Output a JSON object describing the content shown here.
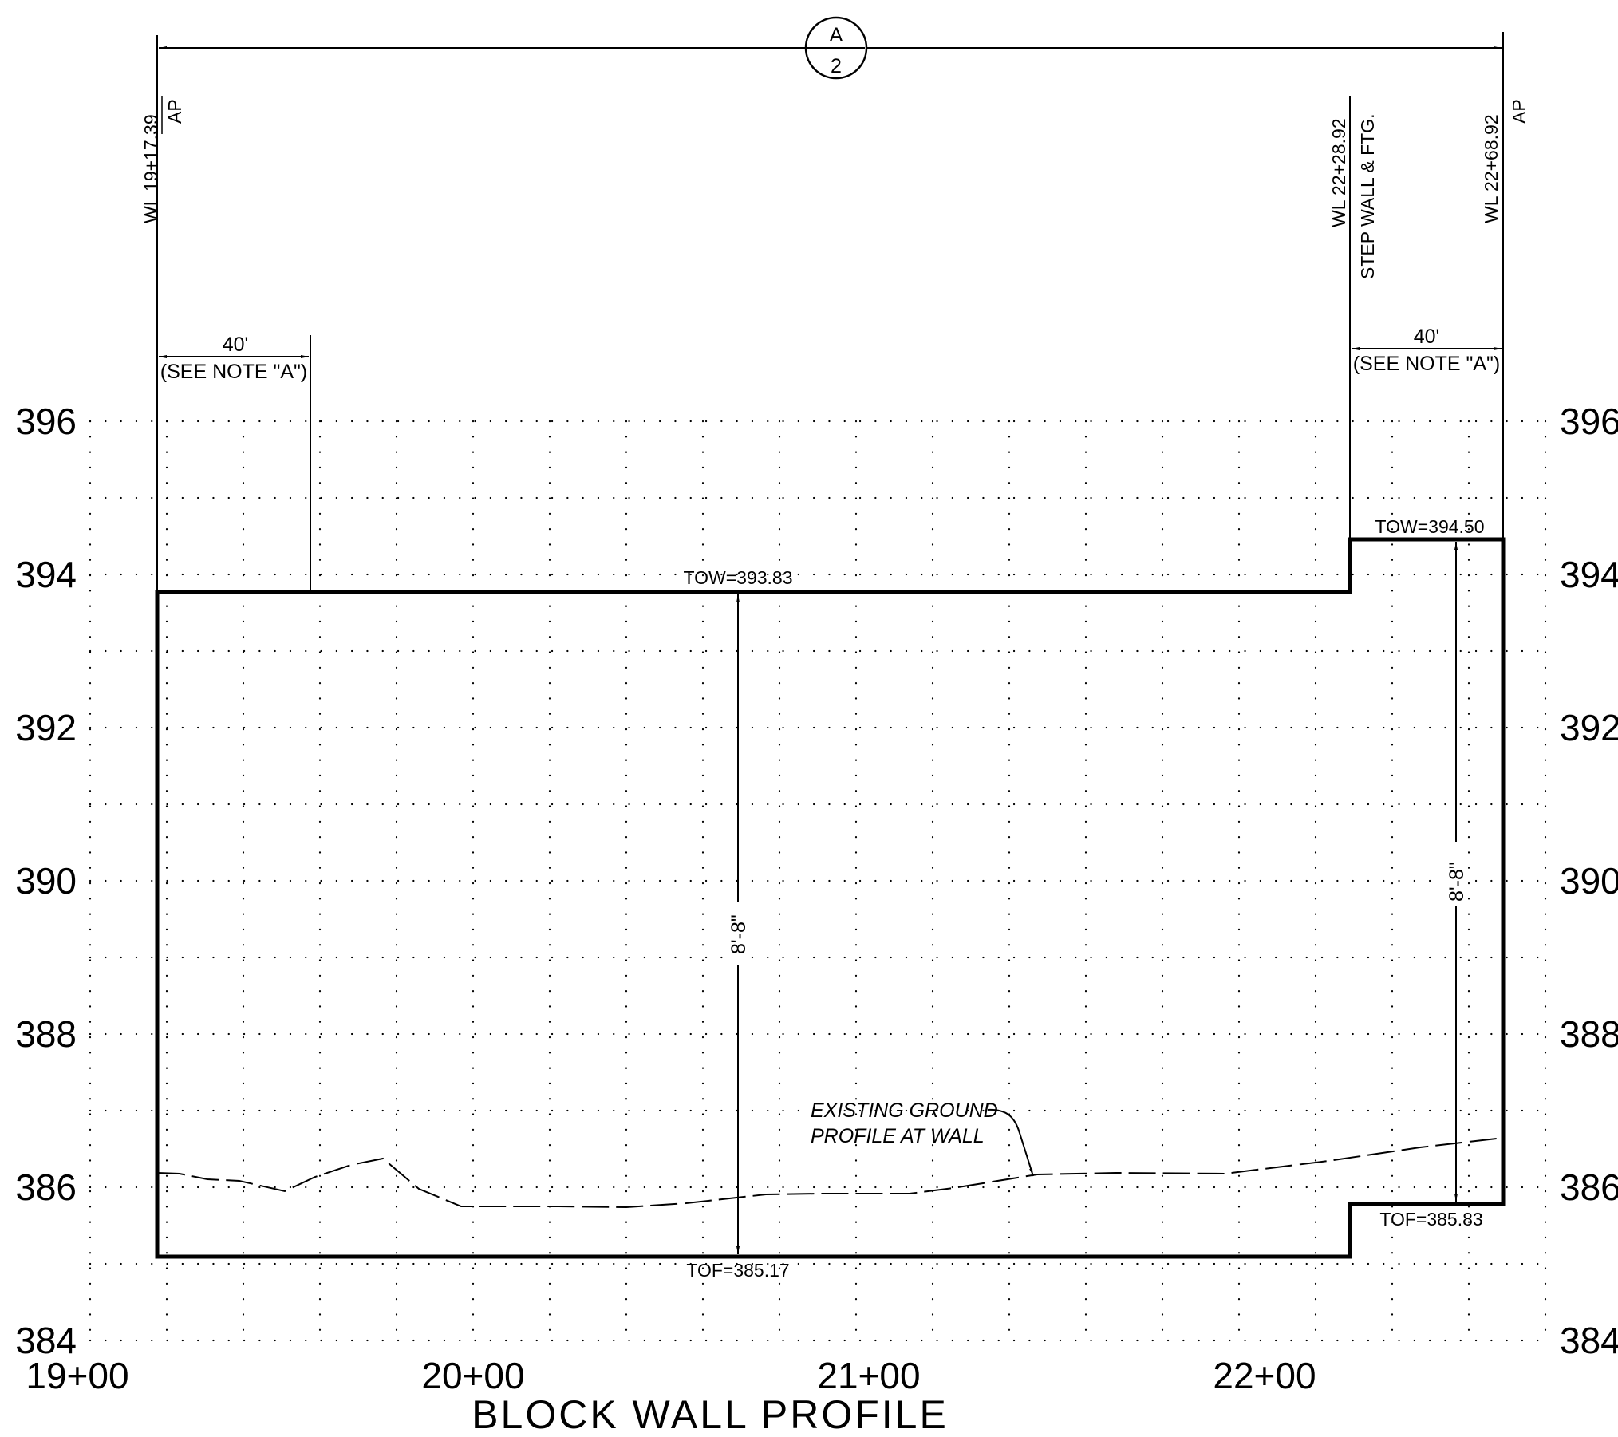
{
  "section_marker": {
    "top": "A",
    "bottom": "2"
  },
  "y_axis_labels": [
    "396",
    "394",
    "392",
    "390",
    "388",
    "386",
    "384"
  ],
  "station_labels": [
    "19+00",
    "20+00",
    "21+00",
    "22+00"
  ],
  "callouts": {
    "left_wl": "WL 19+17.39",
    "left_ap": "AP",
    "step_wl": "WL 22+28.92",
    "step_note": "STEP WALL & FTG.",
    "right_wl": "WL 22+68.92",
    "right_ap": "AP"
  },
  "dims": {
    "left_len": "40'",
    "left_note": "(SEE NOTE \"A\")",
    "right_len": "40'",
    "right_note": "(SEE NOTE \"A\")",
    "height_left": "8'-8\"",
    "height_right": "8'-8\""
  },
  "elevations": {
    "tow_main": "TOW=393.83",
    "tow_step": "TOW=394.50",
    "tof_main": "TOF=385.17",
    "tof_step": "TOF=385.83"
  },
  "ground_label": {
    "line1": "EXISTING GROUND",
    "line2": "PROFILE AT WALL"
  },
  "title": "BLOCK WALL PROFILE"
}
